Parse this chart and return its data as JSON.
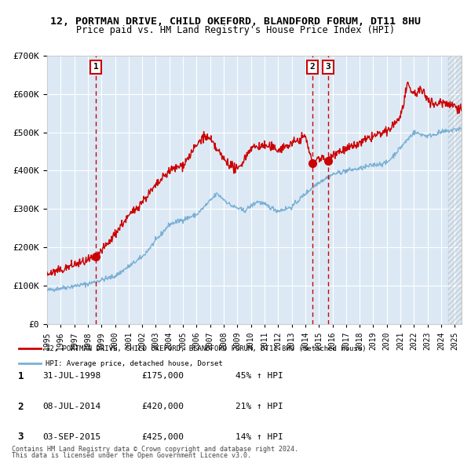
{
  "title": "12, PORTMAN DRIVE, CHILD OKEFORD, BLANDFORD FORUM, DT11 8HU",
  "subtitle": "Price paid vs. HM Land Registry's House Price Index (HPI)",
  "legend_red": "12, PORTMAN DRIVE, CHILD OKEFORD, BLANDFORD FORUM, DT11 8HU (detached house)",
  "legend_blue": "HPI: Average price, detached house, Dorset",
  "footnote1": "Contains HM Land Registry data © Crown copyright and database right 2024.",
  "footnote2": "This data is licensed under the Open Government Licence v3.0.",
  "transactions": [
    {
      "num": 1,
      "date": "31-JUL-1998",
      "year": 1998.58,
      "price": 175000,
      "pct": "45% ↑ HPI"
    },
    {
      "num": 2,
      "date": "08-JUL-2014",
      "year": 2014.52,
      "price": 420000,
      "pct": "21% ↑ HPI"
    },
    {
      "num": 3,
      "date": "03-SEP-2015",
      "year": 2015.67,
      "price": 425000,
      "pct": "14% ↑ HPI"
    }
  ],
  "ylim": [
    0,
    700000
  ],
  "xlim_start": 1995.0,
  "xlim_end": 2025.5,
  "plot_bg": "#dce9f5",
  "red_color": "#cc0000",
  "blue_color": "#7ab0d4",
  "dashed_line_color": "#cc0000",
  "hpi_anchors": {
    "1995.0": 88000,
    "1998.0": 105000,
    "2000.0": 125000,
    "2002.0": 175000,
    "2004.0": 260000,
    "2006.0": 285000,
    "2007.5": 340000,
    "2008.5": 310000,
    "2009.5": 295000,
    "2010.5": 320000,
    "2012.0": 295000,
    "2013.0": 305000,
    "2014.0": 340000,
    "2015.0": 370000,
    "2016.0": 390000,
    "2017.0": 400000,
    "2018.0": 405000,
    "2019.0": 415000,
    "2020.0": 420000,
    "2021.0": 460000,
    "2022.0": 500000,
    "2023.0": 490000,
    "2024.0": 500000,
    "2025.5": 510000
  },
  "red_anchors": {
    "1995.0": 130000,
    "1996.0": 140000,
    "1997.0": 155000,
    "1998.0": 165000,
    "1998.58": 175000,
    "1999.5": 210000,
    "2000.5": 260000,
    "2002.0": 320000,
    "2004.0": 400000,
    "2005.0": 415000,
    "2006.5": 490000,
    "2007.0": 480000,
    "2008.0": 430000,
    "2009.0": 400000,
    "2010.0": 460000,
    "2011.0": 465000,
    "2012.0": 455000,
    "2013.0": 470000,
    "2014.0": 490000,
    "2014.52": 420000,
    "2015.0": 435000,
    "2015.67": 425000,
    "2016.0": 445000,
    "2017.0": 455000,
    "2018.0": 470000,
    "2019.0": 490000,
    "2020.0": 500000,
    "2021.0": 540000,
    "2021.5": 620000,
    "2022.0": 600000,
    "2022.5": 610000,
    "2023.0": 590000,
    "2023.5": 570000,
    "2024.0": 580000,
    "2025.0": 570000,
    "2025.5": 560000
  }
}
